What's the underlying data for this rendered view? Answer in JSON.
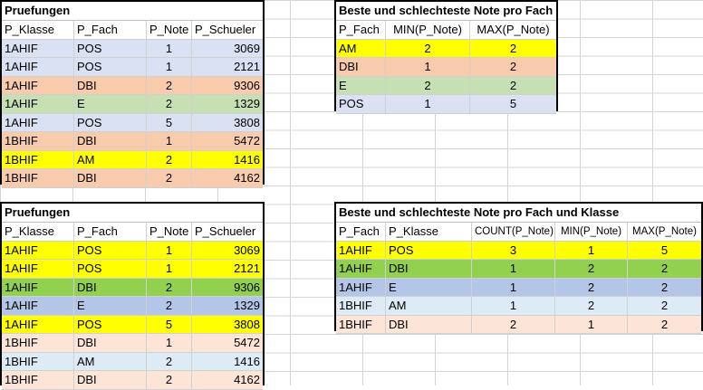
{
  "colors": {
    "yellow": "#ffff00",
    "salmon": "#f8cbad",
    "blue_light": "#d9e1f2",
    "green_light": "#c6e0b4",
    "green": "#92d050",
    "blue_mid": "#b4c6e7",
    "blue_pale": "#ddebf7",
    "peach_pale": "#fce4d6"
  },
  "table1": {
    "title": "Pruefungen",
    "headers": [
      "P_Klasse",
      "P_Fach",
      "P_Note",
      "P_Schueler"
    ],
    "rows": [
      {
        "cells": [
          "1AHIF",
          "POS",
          "1",
          "3069"
        ],
        "color": "#d9e1f2"
      },
      {
        "cells": [
          "1AHIF",
          "POS",
          "1",
          "2121"
        ],
        "color": "#d9e1f2"
      },
      {
        "cells": [
          "1AHIF",
          "DBI",
          "2",
          "9306"
        ],
        "color": "#f8cbad"
      },
      {
        "cells": [
          "1AHIF",
          "E",
          "2",
          "1329"
        ],
        "color": "#c6e0b4"
      },
      {
        "cells": [
          "1AHIF",
          "POS",
          "5",
          "3808"
        ],
        "color": "#d9e1f2"
      },
      {
        "cells": [
          "1BHIF",
          "DBI",
          "1",
          "5472"
        ],
        "color": "#f8cbad"
      },
      {
        "cells": [
          "1BHIF",
          "AM",
          "2",
          "1416"
        ],
        "color": "#ffff00"
      },
      {
        "cells": [
          "1BHIF",
          "DBI",
          "2",
          "4162"
        ],
        "color": "#f8cbad"
      }
    ]
  },
  "table2": {
    "title": "Beste und schlechteste Note pro Fach",
    "headers": [
      "P_Fach",
      "MIN(P_Note)",
      "MAX(P_Note)"
    ],
    "rows": [
      {
        "cells": [
          "AM",
          "2",
          "2"
        ],
        "color": "#ffff00"
      },
      {
        "cells": [
          "DBI",
          "1",
          "2"
        ],
        "color": "#f8cbad"
      },
      {
        "cells": [
          "E",
          "2",
          "2"
        ],
        "color": "#c6e0b4"
      },
      {
        "cells": [
          "POS",
          "1",
          "5"
        ],
        "color": "#d9e1f2"
      }
    ]
  },
  "table3": {
    "title": "Pruefungen",
    "headers": [
      "P_Klasse",
      "P_Fach",
      "P_Note",
      "P_Schueler"
    ],
    "rows": [
      {
        "cells": [
          "1AHIF",
          "POS",
          "1",
          "3069"
        ],
        "color": "#ffff00"
      },
      {
        "cells": [
          "1AHIF",
          "POS",
          "1",
          "2121"
        ],
        "color": "#ffff00"
      },
      {
        "cells": [
          "1AHIF",
          "DBI",
          "2",
          "9306"
        ],
        "color": "#92d050"
      },
      {
        "cells": [
          "1AHIF",
          "E",
          "2",
          "1329"
        ],
        "color": "#b4c6e7"
      },
      {
        "cells": [
          "1AHIF",
          "POS",
          "5",
          "3808"
        ],
        "color": "#ffff00"
      },
      {
        "cells": [
          "1BHIF",
          "DBI",
          "1",
          "5472"
        ],
        "color": "#fce4d6"
      },
      {
        "cells": [
          "1BHIF",
          "AM",
          "2",
          "1416"
        ],
        "color": "#ddebf7"
      },
      {
        "cells": [
          "1BHIF",
          "DBI",
          "2",
          "4162"
        ],
        "color": "#fce4d6"
      }
    ]
  },
  "table4": {
    "title": "Beste und schlechteste Note pro Fach und Klasse",
    "headers": [
      "P_Fach",
      "P_Klasse",
      "COUNT(P_Note)",
      "MIN(P_Note)",
      "MAX(P_Note)"
    ],
    "rows": [
      {
        "cells": [
          "1AHIF",
          "POS",
          "3",
          "1",
          "5"
        ],
        "color": "#ffff00"
      },
      {
        "cells": [
          "1AHIF",
          "DBI",
          "1",
          "2",
          "2"
        ],
        "color": "#92d050"
      },
      {
        "cells": [
          "1AHIF",
          "E",
          "1",
          "2",
          "2"
        ],
        "color": "#b4c6e7"
      },
      {
        "cells": [
          "1BHIF",
          "AM",
          "1",
          "2",
          "2"
        ],
        "color": "#ddebf7"
      },
      {
        "cells": [
          "1BHIF",
          "DBI",
          "2",
          "1",
          "2"
        ],
        "color": "#fce4d6"
      }
    ]
  }
}
